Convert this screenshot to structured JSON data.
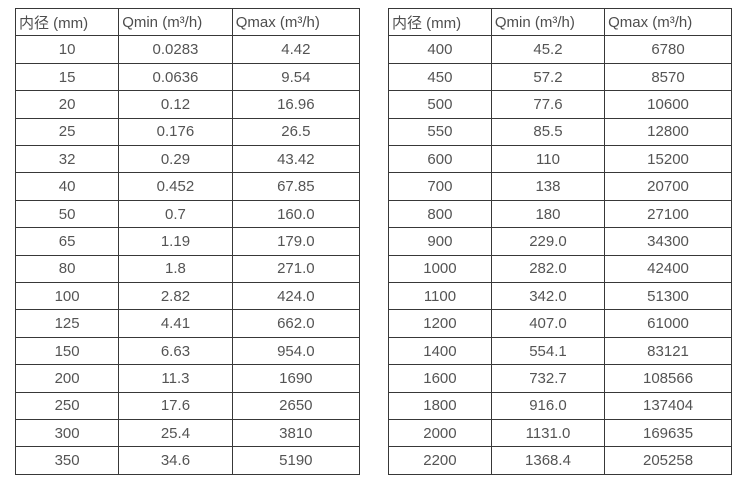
{
  "page": {
    "description": "Flow meter inner-diameter vs minimum and maximum flow rate specification tables",
    "background_color": "#ffffff",
    "border_color": "#383838",
    "text_color": "#545454"
  },
  "tables": [
    {
      "name": "small-diameter-flow-table",
      "headers": [
        "内径 (mm)",
        "Qmin (m³/h)",
        "Qmax (m³/h)"
      ],
      "rows": [
        [
          "10",
          "0.0283",
          "4.42"
        ],
        [
          "15",
          "0.0636",
          "9.54"
        ],
        [
          "20",
          "0.12",
          "16.96"
        ],
        [
          "25",
          "0.176",
          "26.5"
        ],
        [
          "32",
          "0.29",
          "43.42"
        ],
        [
          "40",
          "0.452",
          "67.85"
        ],
        [
          "50",
          "0.7",
          "160.0"
        ],
        [
          "65",
          "1.19",
          "179.0"
        ],
        [
          "80",
          "1.8",
          "271.0"
        ],
        [
          "100",
          "2.82",
          "424.0"
        ],
        [
          "125",
          "4.41",
          "662.0"
        ],
        [
          "150",
          "6.63",
          "954.0"
        ],
        [
          "200",
          "11.3",
          "1690"
        ],
        [
          "250",
          "17.6",
          "2650"
        ],
        [
          "300",
          "25.4",
          "3810"
        ],
        [
          "350",
          "34.6",
          "5190"
        ]
      ]
    },
    {
      "name": "large-diameter-flow-table",
      "headers": [
        "内径 (mm)",
        "Qmin (m³/h)",
        "Qmax (m³/h)"
      ],
      "rows": [
        [
          "400",
          "45.2",
          "6780"
        ],
        [
          "450",
          "57.2",
          "8570"
        ],
        [
          "500",
          "77.6",
          "10600"
        ],
        [
          "550",
          "85.5",
          "12800"
        ],
        [
          "600",
          "110",
          "15200"
        ],
        [
          "700",
          "138",
          "20700"
        ],
        [
          "800",
          "180",
          "27100"
        ],
        [
          "900",
          "229.0",
          "34300"
        ],
        [
          "1000",
          "282.0",
          "42400"
        ],
        [
          "1100",
          "342.0",
          "51300"
        ],
        [
          "1200",
          "407.0",
          "61000"
        ],
        [
          "1400",
          "554.1",
          "83121"
        ],
        [
          "1600",
          "732.7",
          "108566"
        ],
        [
          "1800",
          "916.0",
          "137404"
        ],
        [
          "2000",
          "1131.0",
          "169635"
        ],
        [
          "2200",
          "1368.4",
          "205258"
        ]
      ]
    }
  ]
}
